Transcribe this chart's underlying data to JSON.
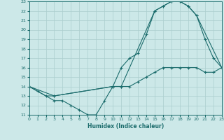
{
  "xlabel": "Humidex (Indice chaleur)",
  "bg_color": "#cce8e8",
  "grid_color": "#aacece",
  "line_color": "#1a6b6b",
  "ylim": [
    11,
    23
  ],
  "xlim": [
    0,
    23
  ],
  "yticks": [
    11,
    12,
    13,
    14,
    15,
    16,
    17,
    18,
    19,
    20,
    21,
    22,
    23
  ],
  "xticks": [
    0,
    1,
    2,
    3,
    4,
    5,
    6,
    7,
    8,
    9,
    10,
    11,
    12,
    13,
    14,
    15,
    16,
    17,
    18,
    19,
    20,
    21,
    22,
    23
  ],
  "line1_x": [
    0,
    1,
    2,
    3,
    10,
    11,
    12,
    13,
    14,
    15,
    16,
    17,
    18,
    19,
    20,
    21,
    22,
    23
  ],
  "line1_y": [
    14,
    13.5,
    13,
    13,
    14,
    14,
    14,
    14.5,
    15,
    15.5,
    16,
    16,
    16,
    16,
    16,
    15.5,
    15.5,
    16
  ],
  "line2_x": [
    0,
    3,
    10,
    11,
    12,
    13,
    14,
    15,
    16,
    17,
    18,
    19,
    20,
    21,
    22,
    23
  ],
  "line2_y": [
    14,
    13,
    14,
    16,
    17,
    17.5,
    19.5,
    22,
    22.5,
    23,
    23,
    22.5,
    21.5,
    19,
    17,
    16
  ],
  "line3_x": [
    0,
    3,
    4,
    5,
    6,
    7,
    8,
    9,
    10,
    11,
    15,
    16,
    17,
    18,
    19,
    20,
    23
  ],
  "line3_y": [
    14,
    12.5,
    12.5,
    12,
    11.5,
    11,
    11,
    12.5,
    14,
    14,
    22,
    22.5,
    23,
    23,
    22.5,
    21.5,
    16
  ]
}
